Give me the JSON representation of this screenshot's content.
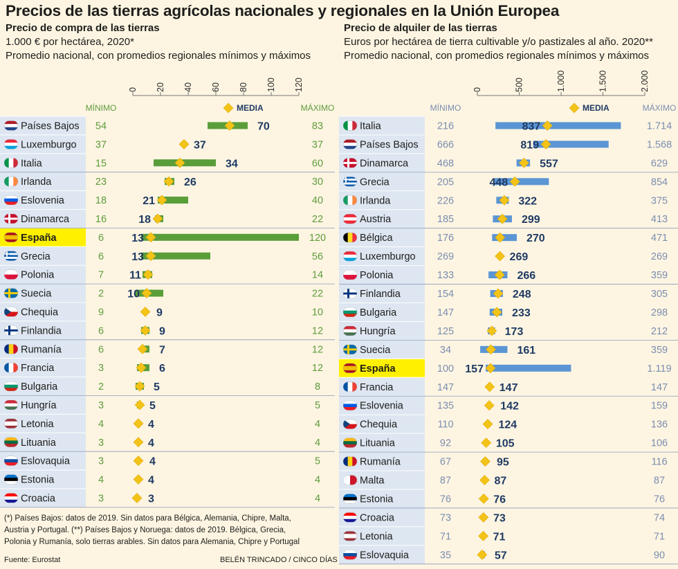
{
  "title": "Precios de las tierras agrícolas nacionales y regionales en la Unión Europea",
  "colors": {
    "background": "#fdf5e2",
    "country_column": "#dde6f1",
    "spain_highlight": "#fff000",
    "left_bar": "#5a9e3a",
    "right_bar": "#5b95d4",
    "diamond": "#f3c318",
    "number_text": "#1f3a63",
    "minmax_green": "#5e9b3b",
    "minmax_grey": "#7b8db0"
  },
  "left": {
    "heading": "Precio de compra de las tierras",
    "unit": "1.000 € por hectárea, 2020*",
    "note": "Promedio nacional, con promedios regionales mínimos y máximos",
    "col_min": "MÍNIMO",
    "col_media": "MEDIA",
    "col_max": "MÁXIMO",
    "axis_labels": [
      "0",
      "20",
      "40",
      "60",
      "80",
      "100",
      "120"
    ]
  },
  "right": {
    "heading": "Precio de alquiler de las tierras",
    "unit": "Euros por hectárea de tierra cultivable y/o pastizales al año. 2020**",
    "note": "Promedio nacional, con promedios regionales mínimos y máximos",
    "col_min": "MÍNIMO",
    "col_media": "MEDIA",
    "col_max": "MÁXIMO",
    "axis_labels": [
      "0",
      "500",
      "1.000",
      "1.500",
      "2.000"
    ]
  },
  "chart_data": [
    {
      "type": "range-dot",
      "title": "Precio de compra de las tierras",
      "unit": "1.000 € por hectárea, 2020*",
      "xlim": [
        0,
        120
      ],
      "ticks": [
        0,
        20,
        40,
        60,
        80,
        100,
        120
      ],
      "rows": [
        {
          "country": "Países Bajos",
          "min": 54,
          "media": 70,
          "max": 83,
          "min_label": "54",
          "media_label": "70",
          "max_label": "83"
        },
        {
          "country": "Luxemburgo",
          "min": 37,
          "media": 37,
          "max": 37,
          "min_label": "37",
          "media_label": "37",
          "max_label": "37"
        },
        {
          "country": "Italia",
          "min": 15,
          "media": 34,
          "max": 60,
          "min_label": "15",
          "media_label": "34",
          "max_label": "60"
        },
        {
          "country": "Irlanda",
          "min": 23,
          "media": 26,
          "max": 30,
          "min_label": "23",
          "media_label": "26",
          "max_label": "30"
        },
        {
          "country": "Eslovenia",
          "min": 18,
          "media": 21,
          "max": 40,
          "min_label": "18",
          "media_label": "21",
          "max_label": "40"
        },
        {
          "country": "Dinamarca",
          "min": 16,
          "media": 18,
          "max": 22,
          "min_label": "16",
          "media_label": "18",
          "max_label": "22"
        },
        {
          "country": "España",
          "min": 6,
          "media": 13,
          "max": 120,
          "min_label": "6",
          "media_label": "13",
          "max_label": "120",
          "highlight": true
        },
        {
          "country": "Grecia",
          "min": 6,
          "media": 13,
          "max": 56,
          "min_label": "6",
          "media_label": "13",
          "max_label": "56"
        },
        {
          "country": "Polonia",
          "min": 7,
          "media": 11,
          "max": 14,
          "min_label": "7",
          "media_label": "11",
          "max_label": "14"
        },
        {
          "country": "Suecia",
          "min": 2,
          "media": 10,
          "max": 22,
          "min_label": "2",
          "media_label": "10",
          "max_label": "22"
        },
        {
          "country": "Chequia",
          "min": 9,
          "media": 9,
          "max": 10,
          "min_label": "9",
          "media_label": "9",
          "max_label": "10"
        },
        {
          "country": "Finlandia",
          "min": 6,
          "media": 9,
          "max": 12,
          "min_label": "6",
          "media_label": "9",
          "max_label": "12"
        },
        {
          "country": "Rumanía",
          "min": 6,
          "media": 7,
          "max": 12,
          "min_label": "6",
          "media_label": "7",
          "max_label": "12"
        },
        {
          "country": "Francia",
          "min": 3,
          "media": 6,
          "max": 12,
          "min_label": "3",
          "media_label": "6",
          "max_label": "12"
        },
        {
          "country": "Bulgaria",
          "min": 2,
          "media": 5,
          "max": 8,
          "min_label": "2",
          "media_label": "5",
          "max_label": "8"
        },
        {
          "country": "Hungría",
          "min": 3,
          "media": 5,
          "max": 5,
          "min_label": "3",
          "media_label": "5",
          "max_label": "5"
        },
        {
          "country": "Letonia",
          "min": 4,
          "media": 4,
          "max": 4,
          "min_label": "4",
          "media_label": "4",
          "max_label": "4"
        },
        {
          "country": "Lituania",
          "min": 3,
          "media": 4,
          "max": 4,
          "min_label": "3",
          "media_label": "4",
          "max_label": "4"
        },
        {
          "country": "Eslovaquia",
          "min": 3,
          "media": 4,
          "max": 5,
          "min_label": "3",
          "media_label": "4",
          "max_label": "5"
        },
        {
          "country": "Estonia",
          "min": 4,
          "media": 4,
          "max": 4,
          "min_label": "4",
          "media_label": "4",
          "max_label": "4"
        },
        {
          "country": "Croacia",
          "min": 3,
          "media": 3,
          "max": 4,
          "min_label": "3",
          "media_label": "3",
          "max_label": "4"
        }
      ]
    },
    {
      "type": "range-dot",
      "title": "Precio de alquiler de las tierras",
      "unit": "Euros por hectárea de tierra cultivable y/o pastizales al año. 2020**",
      "xlim": [
        0,
        2000
      ],
      "ticks": [
        0,
        500,
        1000,
        1500,
        2000
      ],
      "rows": [
        {
          "country": "Italia",
          "min": 216,
          "media": 837,
          "max": 1714,
          "min_label": "216",
          "media_label": "837",
          "max_label": "1.714"
        },
        {
          "country": "Países Bajos",
          "min": 666,
          "media": 819,
          "max": 1568,
          "min_label": "666",
          "media_label": "819",
          "max_label": "1.568"
        },
        {
          "country": "Dinamarca",
          "min": 468,
          "media": 557,
          "max": 629,
          "min_label": "468",
          "media_label": "557",
          "max_label": "629"
        },
        {
          "country": "Grecia",
          "min": 205,
          "media": 448,
          "max": 854,
          "min_label": "205",
          "media_label": "448",
          "max_label": "854"
        },
        {
          "country": "Irlanda",
          "min": 226,
          "media": 322,
          "max": 375,
          "min_label": "226",
          "media_label": "322",
          "max_label": "375"
        },
        {
          "country": "Austria",
          "min": 185,
          "media": 299,
          "max": 413,
          "min_label": "185",
          "media_label": "299",
          "max_label": "413"
        },
        {
          "country": "Bélgica",
          "min": 176,
          "media": 270,
          "max": 471,
          "min_label": "176",
          "media_label": "270",
          "max_label": "471"
        },
        {
          "country": "Luxemburgo",
          "min": 269,
          "media": 269,
          "max": 269,
          "min_label": "269",
          "media_label": "269",
          "max_label": "269"
        },
        {
          "country": "Polonia",
          "min": 133,
          "media": 266,
          "max": 359,
          "min_label": "133",
          "media_label": "266",
          "max_label": "359"
        },
        {
          "country": "Finlandia",
          "min": 154,
          "media": 248,
          "max": 305,
          "min_label": "154",
          "media_label": "248",
          "max_label": "305"
        },
        {
          "country": "Bulgaria",
          "min": 147,
          "media": 233,
          "max": 298,
          "min_label": "147",
          "media_label": "233",
          "max_label": "298"
        },
        {
          "country": "Hungría",
          "min": 125,
          "media": 173,
          "max": 212,
          "min_label": "125",
          "media_label": "173",
          "max_label": "212"
        },
        {
          "country": "Suecia",
          "min": 34,
          "media": 161,
          "max": 359,
          "min_label": "34",
          "media_label": "161",
          "max_label": "359"
        },
        {
          "country": "España",
          "min": 100,
          "media": 157,
          "max": 1119,
          "min_label": "100",
          "media_label": "157",
          "max_label": "1.119",
          "highlight": true
        },
        {
          "country": "Francia",
          "min": 147,
          "media": 147,
          "max": 147,
          "min_label": "147",
          "media_label": "147",
          "max_label": "147"
        },
        {
          "country": "Eslovenia",
          "min": 135,
          "media": 142,
          "max": 159,
          "min_label": "135",
          "media_label": "142",
          "max_label": "159"
        },
        {
          "country": "Chequia",
          "min": 110,
          "media": 124,
          "max": 136,
          "min_label": "110",
          "media_label": "124",
          "max_label": "136"
        },
        {
          "country": "Lituania",
          "min": 92,
          "media": 105,
          "max": 106,
          "min_label": "92",
          "media_label": "105",
          "max_label": "106"
        },
        {
          "country": "Rumanía",
          "min": 67,
          "media": 95,
          "max": 116,
          "min_label": "67",
          "media_label": "95",
          "max_label": "116"
        },
        {
          "country": "Malta",
          "min": 87,
          "media": 87,
          "max": 87,
          "min_label": "87",
          "media_label": "87",
          "max_label": "87"
        },
        {
          "country": "Estonia",
          "min": 76,
          "media": 76,
          "max": 76,
          "min_label": "76",
          "media_label": "76",
          "max_label": "76"
        },
        {
          "country": "Croacia",
          "min": 73,
          "media": 73,
          "max": 74,
          "min_label": "73",
          "media_label": "73",
          "max_label": "74"
        },
        {
          "country": "Letonia",
          "min": 71,
          "media": 71,
          "max": 71,
          "min_label": "71",
          "media_label": "71",
          "max_label": "71"
        },
        {
          "country": "Eslovaquia",
          "min": 35,
          "media": 57,
          "max": 90,
          "min_label": "35",
          "media_label": "57",
          "max_label": "90"
        }
      ]
    }
  ],
  "flags": {
    "Países Bajos": {
      "kind": "h",
      "c": [
        "#ae1c28",
        "#ffffff",
        "#21468b"
      ]
    },
    "Luxemburgo": {
      "kind": "h",
      "c": [
        "#ed2939",
        "#ffffff",
        "#00a1de"
      ]
    },
    "Italia": {
      "kind": "v",
      "c": [
        "#009246",
        "#ffffff",
        "#ce2b37"
      ]
    },
    "Irlanda": {
      "kind": "v",
      "c": [
        "#169b62",
        "#ffffff",
        "#ff883e"
      ]
    },
    "Eslovenia": {
      "kind": "h",
      "c": [
        "#ffffff",
        "#005ce5",
        "#ed1c24"
      ]
    },
    "Dinamarca": {
      "kind": "cross",
      "c": [
        "#c8102e",
        "#ffffff"
      ]
    },
    "España": {
      "kind": "h3",
      "c": [
        "#aa151b",
        "#f1bf00",
        "#aa151b"
      ]
    },
    "Grecia": {
      "kind": "stripes",
      "c": [
        "#0d5eaf",
        "#ffffff"
      ]
    },
    "Polonia": {
      "kind": "h2",
      "c": [
        "#ffffff",
        "#dc143c"
      ]
    },
    "Suecia": {
      "kind": "cross",
      "c": [
        "#006aa7",
        "#fecc00"
      ]
    },
    "Chequia": {
      "kind": "cz",
      "c": [
        "#ffffff",
        "#d7141a",
        "#11457e"
      ]
    },
    "Finlandia": {
      "kind": "cross",
      "c": [
        "#ffffff",
        "#003580"
      ]
    },
    "Rumanía": {
      "kind": "v",
      "c": [
        "#002b7f",
        "#fcd116",
        "#ce1126"
      ]
    },
    "Francia": {
      "kind": "v",
      "c": [
        "#0055a4",
        "#ffffff",
        "#ef4135"
      ]
    },
    "Bulgaria": {
      "kind": "h",
      "c": [
        "#ffffff",
        "#00966e",
        "#d62612"
      ]
    },
    "Hungría": {
      "kind": "h",
      "c": [
        "#ce2939",
        "#ffffff",
        "#477050"
      ]
    },
    "Letonia": {
      "kind": "h3",
      "c": [
        "#9e3039",
        "#ffffff",
        "#9e3039"
      ]
    },
    "Lituania": {
      "kind": "h",
      "c": [
        "#fdb913",
        "#006a44",
        "#c1272d"
      ]
    },
    "Eslovaquia": {
      "kind": "h",
      "c": [
        "#ffffff",
        "#0b4ea2",
        "#ee1c25"
      ]
    },
    "Estonia": {
      "kind": "h",
      "c": [
        "#0072ce",
        "#000000",
        "#ffffff"
      ]
    },
    "Croacia": {
      "kind": "h",
      "c": [
        "#ff0000",
        "#ffffff",
        "#171796"
      ]
    },
    "Austria": {
      "kind": "h",
      "c": [
        "#ed2939",
        "#ffffff",
        "#ed2939"
      ]
    },
    "Bélgica": {
      "kind": "v",
      "c": [
        "#000000",
        "#fdda24",
        "#ef3340"
      ]
    },
    "Malta": {
      "kind": "v2",
      "c": [
        "#ffffff",
        "#cf142b"
      ]
    }
  },
  "footnote": {
    "line1": "(*) Países Bajos: datos de 2019. Sin datos para Bélgica, Alemania, Chipre, Malta,",
    "line2": "Austria y Portugal. (**) Países Bajos y Noruega: datos de 2019. Bélgica, Grecia,",
    "line3": "Polonia y Rumanía, solo tierras arables. Sin datos para Alemania, Chipre y Portugal"
  },
  "source": "Fuente: Eurostat",
  "credit": "BELÉN TRINCADO / CINCO DÍAS"
}
